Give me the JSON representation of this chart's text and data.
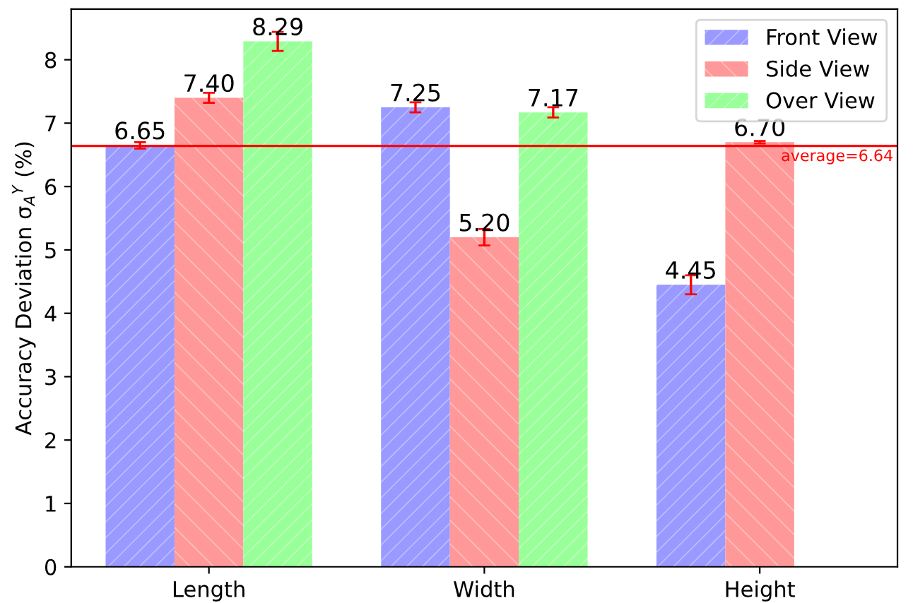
{
  "chart_data": {
    "type": "bar",
    "ylabel": "Accuracy Deviation σ$_{A}$$^{Y}$ (%)",
    "categories": [
      "Length",
      "Width",
      "Height"
    ],
    "series": [
      {
        "name": "Front View",
        "color": "#9999ff",
        "values": [
          6.65,
          7.25,
          4.45
        ],
        "value_labels": [
          "6.65",
          "7.25",
          "4.45"
        ],
        "errors": [
          0.05,
          0.08,
          0.15
        ]
      },
      {
        "name": "Side View",
        "color": "#ff9999",
        "values": [
          7.4,
          5.2,
          6.7
        ],
        "value_labels": [
          "7.40",
          "5.20",
          "6.70"
        ],
        "errors": [
          0.08,
          0.13,
          0.02
        ]
      },
      {
        "name": "Over View",
        "color": "#99ff99",
        "values": [
          8.29,
          7.17,
          null
        ],
        "value_labels": [
          "8.29",
          "7.17",
          null
        ],
        "errors": [
          0.15,
          0.08,
          null
        ]
      }
    ],
    "ylim": [
      0,
      8.8
    ],
    "yticks": [
      0,
      1,
      2,
      3,
      4,
      5,
      6,
      7,
      8
    ],
    "ref_lines": [
      {
        "axis": "y",
        "value": 6.64,
        "label": "average=6.64",
        "color": "#ff0000"
      }
    ],
    "legend": "top right",
    "grid": false
  }
}
